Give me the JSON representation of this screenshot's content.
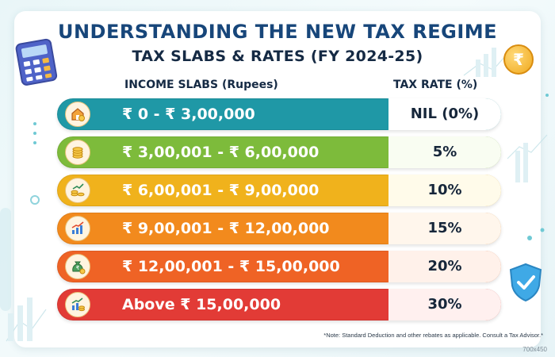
{
  "title": "UNDERSTANDING THE NEW TAX REGIME",
  "subtitle": "TAX SLABS & RATES (FY 2024-25)",
  "headers": {
    "income": "INCOME SLABS (Rupees)",
    "rate": "TAX RATE (%)"
  },
  "rows": [
    {
      "slab": "₹ 0 - ₹ 3,00,000",
      "rate": "NIL (0%)",
      "color": "#1f98a6",
      "icon": "house-coin-icon"
    },
    {
      "slab": "₹ 3,00,001 - ₹ 6,00,000",
      "rate": "5%",
      "color": "#7dbb3b",
      "icon": "coin-stack-icon"
    },
    {
      "slab": "₹ 6,00,001 - ₹ 9,00,000",
      "rate": "10%",
      "color": "#f0b21c",
      "icon": "coins-growth-icon"
    },
    {
      "slab": "₹ 9,00,001 - ₹ 12,00,000",
      "rate": "15%",
      "color": "#f28a1d",
      "icon": "bar-chart-growth-icon"
    },
    {
      "slab": "₹ 12,00,001 - ₹ 15,00,000",
      "rate": "20%",
      "color": "#ef6325",
      "icon": "money-bag-icon"
    },
    {
      "slab": "Above ₹ 15,00,000",
      "rate": "30%",
      "color": "#e23b36",
      "icon": "chart-coins-icon"
    }
  ],
  "rate_box_colors": [
    "#ffffff",
    "#f9fdf2",
    "#fffbea",
    "#fff6ec",
    "#fff1ea",
    "#fff0ef"
  ],
  "note": "*Note: Standard Deduction and other rebates as applicable. Consult a Tax Advisor.*",
  "dims_label": "700x450",
  "decor": {
    "calculator": "calculator-icon",
    "rupee_coin": "rupee-coin-icon",
    "rupee_coin_symbol": "₹",
    "shield": "shield-check-icon"
  }
}
